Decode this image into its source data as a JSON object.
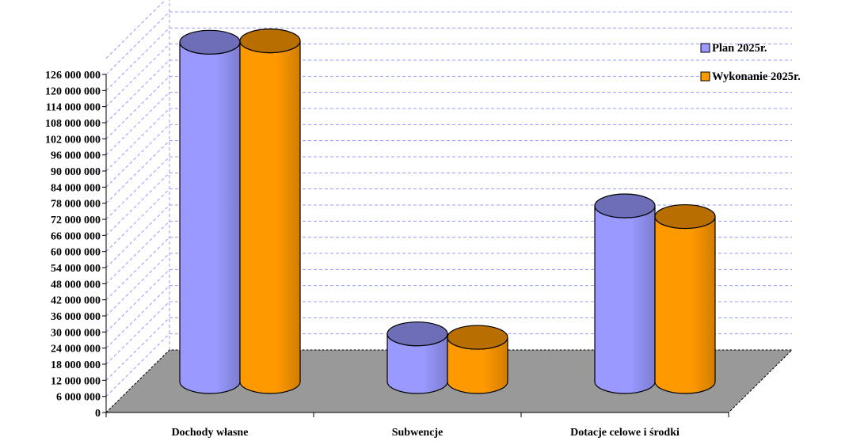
{
  "chart_data": {
    "type": "bar",
    "style": "3d-cylinder",
    "title": "",
    "xlabel": "",
    "ylabel": "",
    "categories": [
      "Dochody własne",
      "Subwencje",
      "Dotacje celowe i środki"
    ],
    "series": [
      {
        "name": "Plan 2025r.",
        "values": [
          126500000,
          17800000,
          65500000
        ],
        "color": "#9999ff"
      },
      {
        "name": "Wykonanie 2025r.",
        "values": [
          127000000,
          16500000,
          61500000
        ],
        "color": "#ff9900"
      }
    ],
    "ylim": [
      0,
      126000000
    ],
    "ytick_step": 6000000,
    "ytick_labels": [
      "0",
      "6 000 000",
      "12 000 000",
      "18 000 000",
      "24 000 000",
      "30 000 000",
      "36 000 000",
      "42 000 000",
      "48 000 000",
      "54 000 000",
      "60 000 000",
      "66 000 000",
      "72 000 000",
      "78 000 000",
      "84 000 000",
      "90 000 000",
      "96 000 000",
      "102 000 000",
      "108 000 000",
      "114 000 000",
      "120 000 000",
      "126 000 000"
    ],
    "grid": true,
    "legend_position": "top-right",
    "floor_color": "#999999",
    "grid_color": "#9999ff"
  }
}
